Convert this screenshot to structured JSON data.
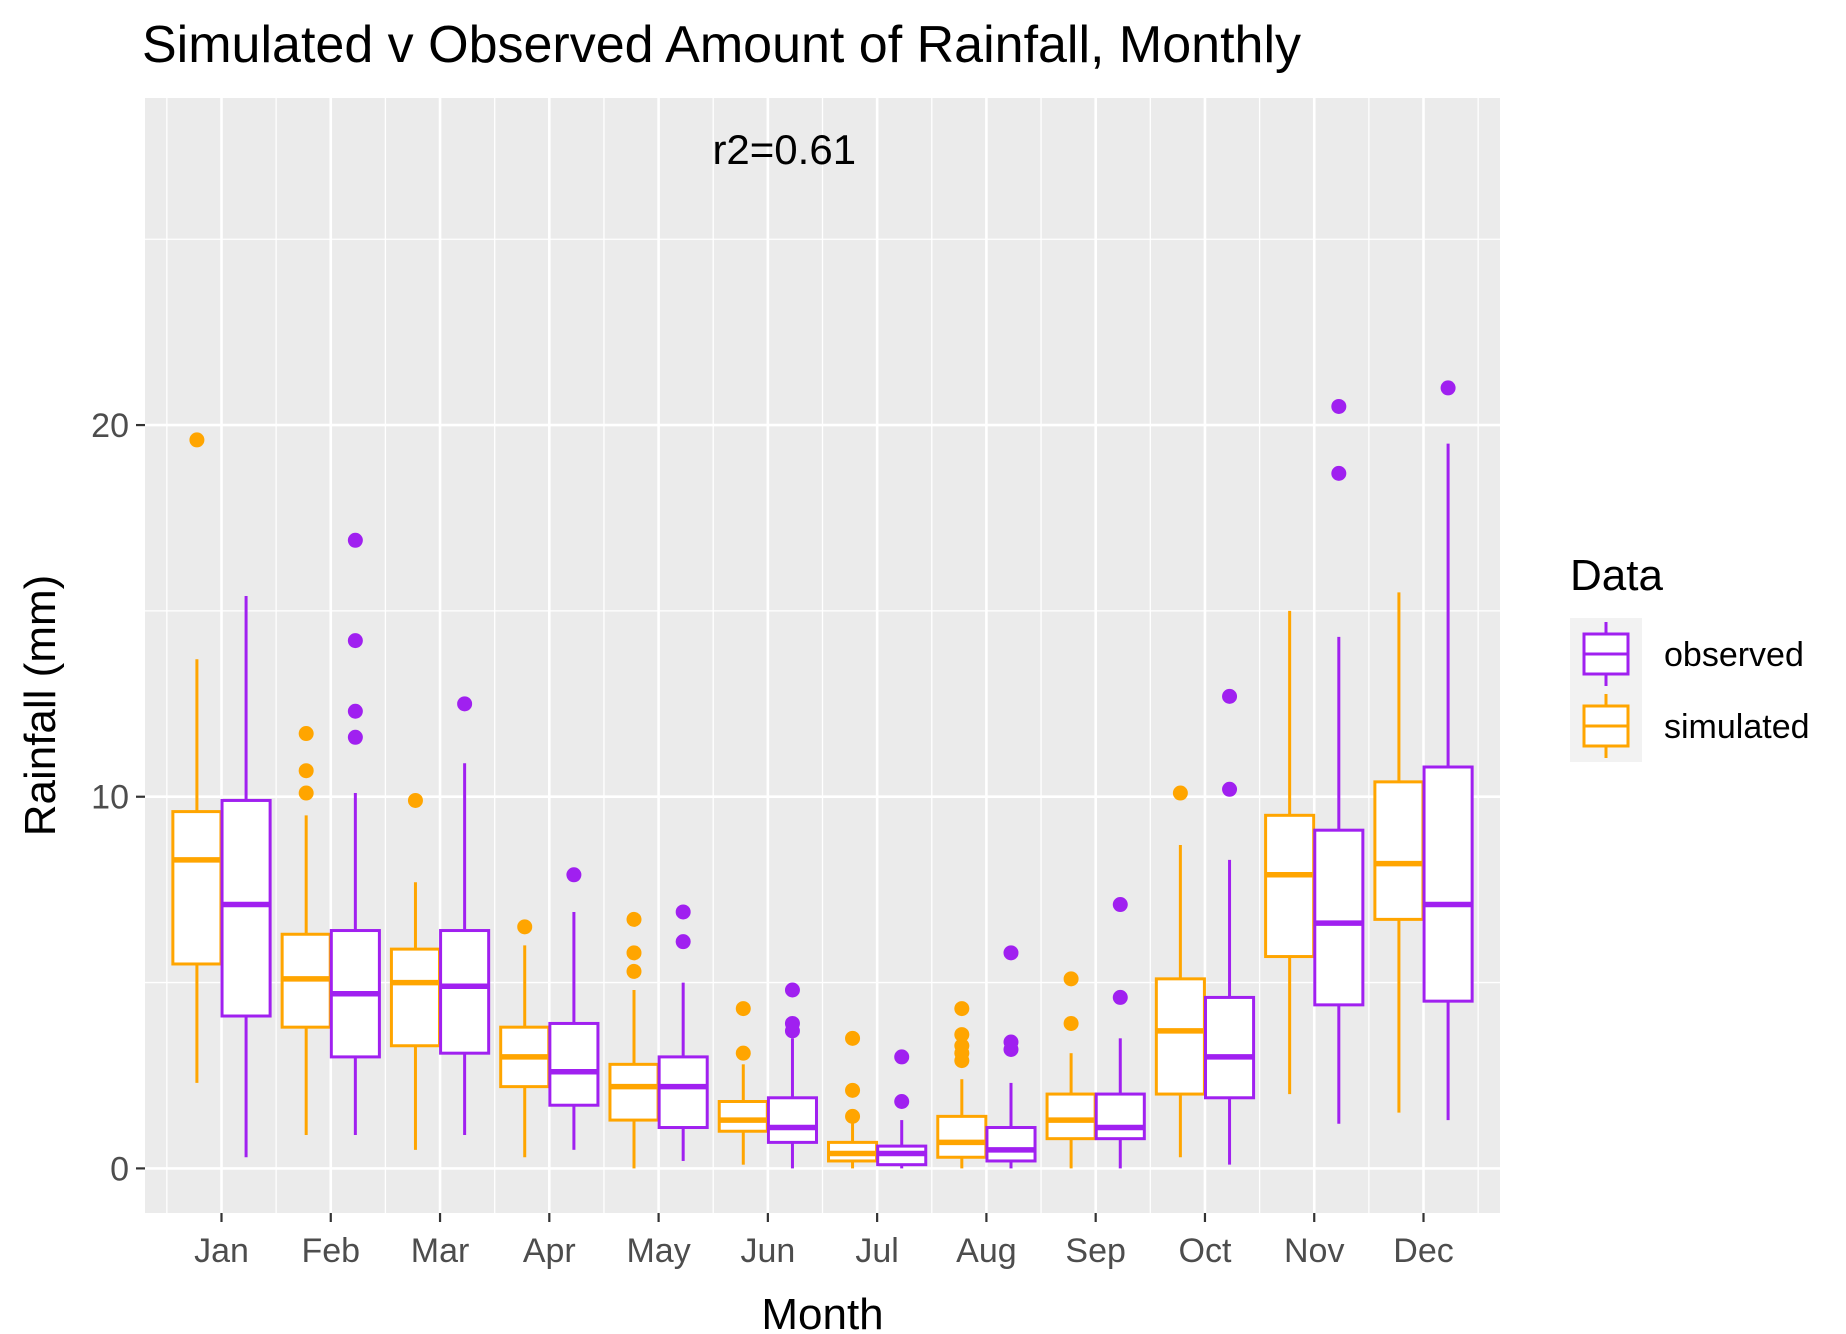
{
  "chart_data": {
    "type": "boxplot",
    "title": "Simulated v Observed Amount of Rainfall, Monthly",
    "annotation": "r2=0.61",
    "xlabel": "Month",
    "ylabel": "Rainfall (mm)",
    "ylim": [
      -1.2,
      28.8
    ],
    "yticks": [
      0,
      10,
      20
    ],
    "grid": true,
    "legend": {
      "title": "Data",
      "position": "right",
      "entries": [
        {
          "name": "observed",
          "color": "#a020f0"
        },
        {
          "name": "simulated",
          "color": "#ffa500"
        }
      ]
    },
    "categories": [
      "Jan",
      "Feb",
      "Mar",
      "Apr",
      "May",
      "Jun",
      "Jul",
      "Aug",
      "Sep",
      "Oct",
      "Nov",
      "Dec"
    ],
    "series": [
      {
        "name": "simulated",
        "color": "#ffa500",
        "boxes": [
          {
            "lower_whisker": 2.3,
            "q1": 5.5,
            "median": 8.3,
            "q3": 9.6,
            "upper_whisker": 13.7,
            "outliers": [
              19.6
            ]
          },
          {
            "lower_whisker": 0.9,
            "q1": 3.8,
            "median": 5.1,
            "q3": 6.3,
            "upper_whisker": 9.5,
            "outliers": [
              10.1,
              10.7,
              11.7
            ]
          },
          {
            "lower_whisker": 0.5,
            "q1": 3.3,
            "median": 5.0,
            "q3": 5.9,
            "upper_whisker": 7.7,
            "outliers": [
              9.9
            ]
          },
          {
            "lower_whisker": 0.3,
            "q1": 2.2,
            "median": 3.0,
            "q3": 3.8,
            "upper_whisker": 6.0,
            "outliers": [
              6.5
            ]
          },
          {
            "lower_whisker": 0.0,
            "q1": 1.3,
            "median": 2.2,
            "q3": 2.8,
            "upper_whisker": 4.8,
            "outliers": [
              5.3,
              5.8,
              6.7
            ]
          },
          {
            "lower_whisker": 0.1,
            "q1": 1.0,
            "median": 1.3,
            "q3": 1.8,
            "upper_whisker": 2.8,
            "outliers": [
              3.1,
              4.3
            ]
          },
          {
            "lower_whisker": 0.0,
            "q1": 0.2,
            "median": 0.4,
            "q3": 0.7,
            "upper_whisker": 1.3,
            "outliers": [
              1.4,
              2.1,
              3.5
            ]
          },
          {
            "lower_whisker": 0.0,
            "q1": 0.3,
            "median": 0.7,
            "q3": 1.4,
            "upper_whisker": 2.4,
            "outliers": [
              2.9,
              3.1,
              3.3,
              3.6,
              4.3
            ]
          },
          {
            "lower_whisker": 0.0,
            "q1": 0.8,
            "median": 1.3,
            "q3": 2.0,
            "upper_whisker": 3.1,
            "outliers": [
              3.9,
              5.1
            ]
          },
          {
            "lower_whisker": 0.3,
            "q1": 2.0,
            "median": 3.7,
            "q3": 5.1,
            "upper_whisker": 8.7,
            "outliers": [
              10.1
            ]
          },
          {
            "lower_whisker": 2.0,
            "q1": 5.7,
            "median": 7.9,
            "q3": 9.5,
            "upper_whisker": 15.0,
            "outliers": []
          },
          {
            "lower_whisker": 1.5,
            "q1": 6.7,
            "median": 8.2,
            "q3": 10.4,
            "upper_whisker": 15.5,
            "outliers": []
          }
        ]
      },
      {
        "name": "observed",
        "color": "#a020f0",
        "boxes": [
          {
            "lower_whisker": 0.3,
            "q1": 4.1,
            "median": 7.1,
            "q3": 9.9,
            "upper_whisker": 15.4,
            "outliers": []
          },
          {
            "lower_whisker": 0.9,
            "q1": 3.0,
            "median": 4.7,
            "q3": 6.4,
            "upper_whisker": 10.1,
            "outliers": [
              11.6,
              12.3,
              14.2,
              16.9
            ]
          },
          {
            "lower_whisker": 0.9,
            "q1": 3.1,
            "median": 4.9,
            "q3": 6.4,
            "upper_whisker": 10.9,
            "outliers": [
              12.5
            ]
          },
          {
            "lower_whisker": 0.5,
            "q1": 1.7,
            "median": 2.6,
            "q3": 3.9,
            "upper_whisker": 6.9,
            "outliers": [
              7.9
            ]
          },
          {
            "lower_whisker": 0.2,
            "q1": 1.1,
            "median": 2.2,
            "q3": 3.0,
            "upper_whisker": 5.0,
            "outliers": [
              6.1,
              6.9
            ]
          },
          {
            "lower_whisker": 0.0,
            "q1": 0.7,
            "median": 1.1,
            "q3": 1.9,
            "upper_whisker": 3.5,
            "outliers": [
              3.7,
              3.9,
              4.8
            ]
          },
          {
            "lower_whisker": 0.0,
            "q1": 0.1,
            "median": 0.4,
            "q3": 0.6,
            "upper_whisker": 1.3,
            "outliers": [
              1.8,
              3.0
            ]
          },
          {
            "lower_whisker": 0.0,
            "q1": 0.2,
            "median": 0.5,
            "q3": 1.1,
            "upper_whisker": 2.3,
            "outliers": [
              3.2,
              3.4,
              5.8
            ]
          },
          {
            "lower_whisker": 0.0,
            "q1": 0.8,
            "median": 1.1,
            "q3": 2.0,
            "upper_whisker": 3.5,
            "outliers": [
              4.6,
              7.1
            ]
          },
          {
            "lower_whisker": 0.1,
            "q1": 1.9,
            "median": 3.0,
            "q3": 4.6,
            "upper_whisker": 8.3,
            "outliers": [
              10.2,
              12.7
            ]
          },
          {
            "lower_whisker": 1.2,
            "q1": 4.4,
            "median": 6.6,
            "q3": 9.1,
            "upper_whisker": 14.3,
            "outliers": [
              18.7,
              20.5
            ]
          },
          {
            "lower_whisker": 1.3,
            "q1": 4.5,
            "median": 7.1,
            "q3": 10.8,
            "upper_whisker": 19.5,
            "outliers": [
              21.0
            ]
          }
        ]
      }
    ]
  }
}
